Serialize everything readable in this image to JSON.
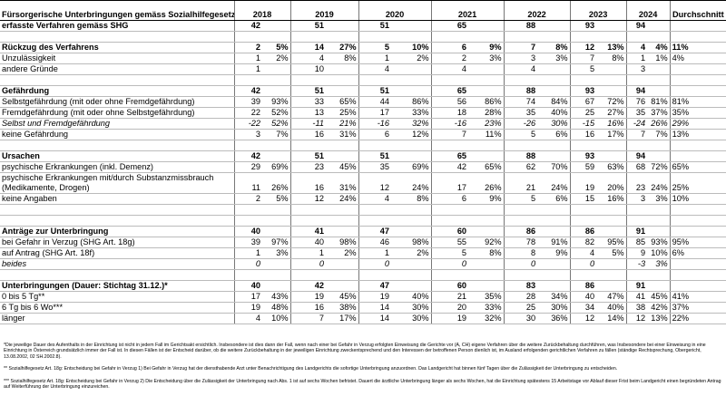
{
  "table": {
    "header": {
      "title": "Fürsorgerische Unterbringungen gemäss Sozialhilfegesetz",
      "years": [
        "2018",
        "2019",
        "2020",
        "2021",
        "2022",
        "2023",
        "2024"
      ],
      "average": "Durchschnitt"
    },
    "sections": [
      {
        "rows": [
          {
            "label": "erfasste Verfahren gemäss SHG",
            "n": [
              42,
              51,
              51,
              65,
              88,
              93,
              94
            ],
            "pct": [
              null,
              null,
              null,
              null,
              null,
              null,
              null
            ],
            "avg": null
          }
        ]
      },
      {
        "rows": [
          {
            "label": "Rückzug des Verfahrens",
            "n": [
              2,
              14,
              5,
              6,
              7,
              12,
              4
            ],
            "pct": [
              "5%",
              "27%",
              "10%",
              "9%",
              "8%",
              "13%",
              "4%"
            ],
            "avg": "11%"
          },
          {
            "label": "Unzulässigkeit",
            "n": [
              1,
              4,
              1,
              2,
              3,
              7,
              1
            ],
            "pct": [
              "2%",
              "8%",
              "2%",
              "3%",
              "3%",
              "8%",
              "1%"
            ],
            "avg": "4%"
          },
          {
            "label": "andere Gründe",
            "n": [
              1,
              10,
              4,
              4,
              4,
              5,
              3
            ],
            "pct": [
              null,
              null,
              null,
              null,
              null,
              null,
              null
            ],
            "avg": null
          }
        ]
      },
      {
        "rows": [
          {
            "label": "Gefährdung",
            "n": [
              42,
              51,
              51,
              65,
              88,
              93,
              94
            ],
            "pct": [
              null,
              null,
              null,
              null,
              null,
              null,
              null
            ],
            "avg": null
          },
          {
            "label": "Selbstgefährdung (mit oder ohne Fremdgefährdung)",
            "n": [
              39,
              33,
              44,
              56,
              74,
              67,
              76
            ],
            "pct": [
              "93%",
              "65%",
              "86%",
              "86%",
              "84%",
              "72%",
              "81%"
            ],
            "avg": "81%"
          },
          {
            "label": "Fremdgefährdung (mit oder ohne Selbstgefährdung)",
            "n": [
              22,
              13,
              17,
              18,
              35,
              25,
              35
            ],
            "pct": [
              "52%",
              "25%",
              "33%",
              "28%",
              "40%",
              "27%",
              "37%"
            ],
            "avg": "35%"
          },
          {
            "label": "Selbst und Fremdgefährdung",
            "n": [
              -22,
              -11,
              -16,
              -16,
              -26,
              -15,
              -24
            ],
            "pct": [
              "52%",
              "21%",
              "32%",
              "23%",
              "30%",
              "16%",
              "26%"
            ],
            "avg": "29%"
          },
          {
            "label": "keine Gefährdung",
            "n": [
              3,
              16,
              6,
              7,
              5,
              16,
              7
            ],
            "pct": [
              "7%",
              "31%",
              "12%",
              "11%",
              "6%",
              "17%",
              "7%"
            ],
            "avg": "13%"
          }
        ]
      },
      {
        "rows": [
          {
            "label": "Ursachen",
            "n": [
              42,
              51,
              51,
              65,
              88,
              93,
              94
            ],
            "pct": [
              null,
              null,
              null,
              null,
              null,
              null,
              null
            ],
            "avg": null
          },
          {
            "label": "psychische Erkrankungen (inkl. Demenz)",
            "n": [
              29,
              23,
              35,
              42,
              62,
              59,
              68
            ],
            "pct": [
              "69%",
              "45%",
              "69%",
              "65%",
              "70%",
              "63%",
              "72%"
            ],
            "avg": "65%"
          },
          {
            "label": "psychische Erkrankungen mit/durch Substanzmissbrauch (Medikamente, Drogen)",
            "n": [
              11,
              16,
              12,
              17,
              21,
              19,
              23
            ],
            "pct": [
              "26%",
              "31%",
              "24%",
              "26%",
              "24%",
              "20%",
              "24%"
            ],
            "avg": "25%"
          },
          {
            "label": "keine Angaben",
            "n": [
              2,
              12,
              4,
              6,
              5,
              15,
              3
            ],
            "pct": [
              "5%",
              "24%",
              "8%",
              "9%",
              "6%",
              "16%",
              "3%"
            ],
            "avg": "10%"
          }
        ]
      },
      {
        "rows": [
          {
            "label": "Anträge zur Unterbringung",
            "n": [
              40,
              41,
              47,
              60,
              86,
              86,
              91
            ],
            "pct": [
              null,
              null,
              null,
              null,
              null,
              null,
              null
            ],
            "avg": null
          },
          {
            "label": "bei Gefahr in Verzug (SHG Art. 18g)",
            "n": [
              39,
              40,
              46,
              55,
              78,
              82,
              85
            ],
            "pct": [
              "97%",
              "98%",
              "98%",
              "92%",
              "91%",
              "95%",
              "93%"
            ],
            "avg": "95%"
          },
          {
            "label": "auf Antrag (SHG Art. 18f)",
            "n": [
              1,
              1,
              1,
              5,
              8,
              4,
              9
            ],
            "pct": [
              "3%",
              "2%",
              "2%",
              "8%",
              "9%",
              "5%",
              "10%"
            ],
            "avg": "6%"
          },
          {
            "label": "beides",
            "n": [
              0,
              0,
              0,
              0,
              0,
              0,
              -3
            ],
            "pct": [
              null,
              null,
              null,
              null,
              null,
              null,
              "3%"
            ],
            "avg": null
          }
        ]
      },
      {
        "rows": [
          {
            "label": "Unterbringungen (Dauer: Stichtag 31.12.)*",
            "n": [
              40,
              42,
              47,
              60,
              83,
              86,
              91
            ],
            "pct": [
              null,
              null,
              null,
              null,
              null,
              null,
              null
            ],
            "avg": null
          },
          {
            "label": "0 bis 5 Tg**",
            "n": [
              17,
              19,
              19,
              21,
              28,
              40,
              41
            ],
            "pct": [
              "43%",
              "45%",
              "40%",
              "35%",
              "34%",
              "47%",
              "45%"
            ],
            "avg": "41%"
          },
          {
            "label": "6 Tg bis 6 Wo***",
            "n": [
              19,
              16,
              14,
              20,
              25,
              34,
              38
            ],
            "pct": [
              "48%",
              "38%",
              "30%",
              "33%",
              "30%",
              "40%",
              "42%"
            ],
            "avg": "37%"
          },
          {
            "label": "länger",
            "n": [
              4,
              7,
              14,
              19,
              30,
              12,
              12
            ],
            "pct": [
              "10%",
              "17%",
              "30%",
              "32%",
              "36%",
              "14%",
              "13%"
            ],
            "avg": "22%"
          }
        ]
      }
    ]
  },
  "footnotes": [
    "*Die jeweilige Dauer des Aufenthalts in der Einrichtung ist nicht in jedem Fall im Gerichtsakt ersichtlich. Insbesondere ist dies dann der Fall, wenn nach einer bei Gefahr in Verzug erfolgten Einweisung die Gerichte vor (A, CH) eigene Verfahren über die weitere Zurückbehaltung durchführen, was Insbesondere bei einer Einweisung in eine Einrichtung in Österreich grundsätzlich immer der Fall ist. In diesen Fällen ist der Entscheid darüber, ob die weitere Zurückbehaltung in der jeweiligen Einrichtung zweckentsprechend und den Interessen der betroffenen Person dienlich ist, im Ausland erfolgenden gerichtlichen Verfahren zu fällen (ständige Rechtsprechung, Obergericht, 13.08.2002, 02 SH.2002.8).",
    "** Sozialhilfegesetz Art. 18g: Entscheidung bei Gefahr in Verzug 1) Bei Gefahr in Verzug hat der diensthabende Arzt unter Benachrichtigung des Landgerichts die sofortige Unterbringung anzuordnen. Das Landgericht hat binnen fünf Tagen über die Zulässigkeit der Unterbringung zu entscheiden.",
    "*** Sozialhilfegesetz Art. 18g: Entscheidung bei Gefahr in Verzug 2) Die Entscheidung über die Zulässigkeit der Unterbringung nach Abs. 1 ist auf sechs Wochen befristet. Dauert die ärztliche Unterbringung länger als sechs Wochen, hat die Einrichtung spätestens 15 Arbeitstage vor Ablauf dieser Frist beim Landgericht einen begründeten Antrag auf Weiterführung der Unterbringung einzureichen."
  ]
}
